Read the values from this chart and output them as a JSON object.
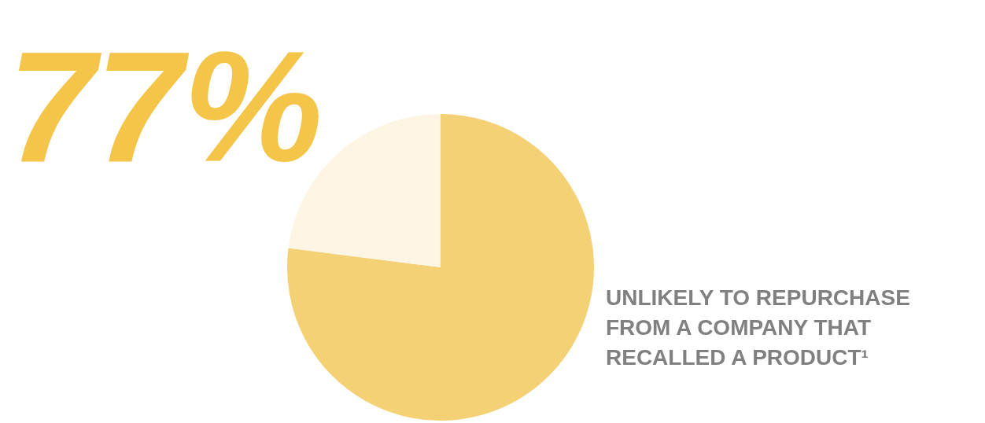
{
  "chart_data": {
    "type": "pie",
    "categories": [
      null,
      null
    ],
    "values": [
      77,
      23
    ],
    "colors": [
      "#f5d176",
      "#fcf5e3"
    ],
    "value_labels": [
      "77%",
      null
    ],
    "annotations": [
      "UNLIKELY TO REPURCHASE FROM A COMPANY THAT RECALLED A PRODUCT¹"
    ]
  }
}
